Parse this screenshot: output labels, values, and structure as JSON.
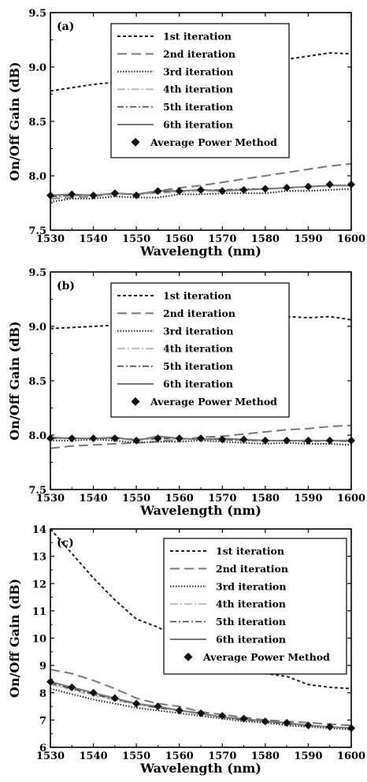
{
  "chart_data": [
    {
      "type": "line",
      "panel_label": "(a)",
      "xlabel": "Wavelength (nm)",
      "ylabel": "On/Off Gain (dB)",
      "xlim": [
        1530,
        1600
      ],
      "ylim": [
        7.5,
        9.5
      ],
      "xticks": [
        "1530",
        "1540",
        "1550",
        "1560",
        "1570",
        "1580",
        "1590",
        "1600"
      ],
      "yticks": [
        "7.5",
        "8.0",
        "8.5",
        "9.0",
        "9.5"
      ],
      "x": [
        1530,
        1535,
        1540,
        1545,
        1550,
        1555,
        1560,
        1565,
        1570,
        1575,
        1580,
        1585,
        1590,
        1595,
        1600
      ],
      "series": [
        {
          "name": "1st iteration",
          "style": "short-dash",
          "color": "#222222",
          "values": [
            8.78,
            8.81,
            8.84,
            8.86,
            8.89,
            8.91,
            8.94,
            8.97,
            8.99,
            9.01,
            9.04,
            9.07,
            9.1,
            9.13,
            9.12
          ]
        },
        {
          "name": "2nd iteration",
          "style": "long-dash",
          "color": "#777777",
          "values": [
            7.79,
            7.8,
            7.81,
            7.83,
            7.83,
            7.86,
            7.89,
            7.91,
            7.94,
            7.97,
            8.0,
            8.03,
            8.06,
            8.09,
            8.11
          ]
        },
        {
          "name": "3rd iteration",
          "style": "dotted",
          "color": "#222222",
          "values": [
            7.76,
            7.79,
            7.79,
            7.81,
            7.8,
            7.8,
            7.83,
            7.83,
            7.84,
            7.84,
            7.84,
            7.86,
            7.86,
            7.87,
            7.88
          ]
        },
        {
          "name": "4th iteration",
          "style": "dash-dot-light",
          "color": "#bbbbbb",
          "values": [
            7.8,
            7.81,
            7.82,
            7.83,
            7.83,
            7.84,
            7.85,
            7.86,
            7.86,
            7.87,
            7.88,
            7.89,
            7.9,
            7.91,
            7.92
          ]
        },
        {
          "name": "5th iteration",
          "style": "dash-dot",
          "color": "#444444",
          "values": [
            7.81,
            7.82,
            7.82,
            7.84,
            7.83,
            7.85,
            7.86,
            7.87,
            7.87,
            7.88,
            7.88,
            7.89,
            7.9,
            7.91,
            7.91
          ]
        },
        {
          "name": "6th iteration",
          "style": "solid",
          "color": "#777777",
          "values": [
            7.82,
            7.83,
            7.82,
            7.84,
            7.83,
            7.86,
            7.86,
            7.87,
            7.86,
            7.87,
            7.88,
            7.89,
            7.9,
            7.91,
            7.91
          ]
        }
      ],
      "markers": {
        "name": "Average Power Method",
        "symbol": "diamond",
        "x": [
          1530,
          1535,
          1540,
          1545,
          1550,
          1555,
          1560,
          1565,
          1570,
          1575,
          1580,
          1585,
          1590,
          1595,
          1600
        ],
        "values": [
          7.82,
          7.83,
          7.82,
          7.84,
          7.82,
          7.86,
          7.86,
          7.87,
          7.86,
          7.87,
          7.88,
          7.89,
          7.9,
          7.92,
          7.92
        ]
      },
      "legend": {
        "placement": "top-right"
      },
      "grid": false
    },
    {
      "type": "line",
      "panel_label": "(b)",
      "xlabel": "Wavelength (nm)",
      "ylabel": "On/Off Gain (dB)",
      "xlim": [
        1530,
        1600
      ],
      "ylim": [
        7.5,
        9.5
      ],
      "xticks": [
        "1530",
        "1540",
        "1550",
        "1560",
        "1570",
        "1580",
        "1590",
        "1600"
      ],
      "yticks": [
        "7.5",
        "8.0",
        "8.5",
        "9.0",
        "9.5"
      ],
      "x": [
        1530,
        1535,
        1540,
        1545,
        1550,
        1555,
        1560,
        1565,
        1570,
        1575,
        1580,
        1585,
        1590,
        1595,
        1600
      ],
      "series": [
        {
          "name": "1st iteration",
          "style": "short-dash",
          "color": "#222222",
          "values": [
            8.98,
            8.99,
            9.0,
            9.01,
            9.02,
            9.03,
            9.04,
            9.05,
            9.06,
            9.07,
            9.08,
            9.09,
            9.08,
            9.09,
            9.06
          ]
        },
        {
          "name": "2nd iteration",
          "style": "long-dash",
          "color": "#777777",
          "values": [
            7.88,
            7.9,
            7.91,
            7.92,
            7.93,
            7.94,
            7.96,
            7.98,
            7.99,
            8.01,
            8.03,
            8.05,
            8.06,
            8.08,
            8.09
          ]
        },
        {
          "name": "3rd iteration",
          "style": "dotted",
          "color": "#222222",
          "values": [
            7.95,
            7.95,
            7.96,
            7.95,
            7.93,
            7.94,
            7.94,
            7.95,
            7.94,
            7.93,
            7.92,
            7.93,
            7.92,
            7.92,
            7.91
          ]
        },
        {
          "name": "4th iteration",
          "style": "dash-dot-light",
          "color": "#bbbbbb",
          "values": [
            7.97,
            7.97,
            7.97,
            7.97,
            7.96,
            7.96,
            7.96,
            7.96,
            7.96,
            7.95,
            7.95,
            7.95,
            7.95,
            7.95,
            7.95
          ]
        },
        {
          "name": "5th iteration",
          "style": "dash-dot",
          "color": "#444444",
          "values": [
            7.97,
            7.97,
            7.97,
            7.97,
            7.96,
            7.97,
            7.97,
            7.96,
            7.96,
            7.95,
            7.95,
            7.95,
            7.94,
            7.95,
            7.94
          ]
        },
        {
          "name": "6th iteration",
          "style": "solid",
          "color": "#777777",
          "values": [
            7.98,
            7.97,
            7.97,
            7.98,
            7.95,
            7.99,
            7.97,
            7.96,
            7.97,
            7.96,
            7.95,
            7.95,
            7.95,
            7.95,
            7.95
          ]
        }
      ],
      "markers": {
        "name": "Average Power Method",
        "symbol": "diamond",
        "x": [
          1530,
          1535,
          1540,
          1545,
          1550,
          1555,
          1560,
          1565,
          1570,
          1575,
          1580,
          1585,
          1590,
          1595,
          1600
        ],
        "values": [
          7.97,
          7.97,
          7.97,
          7.97,
          7.95,
          7.97,
          7.97,
          7.97,
          7.96,
          7.96,
          7.95,
          7.95,
          7.95,
          7.95,
          7.95
        ]
      },
      "legend": {
        "placement": "top-right"
      },
      "grid": false
    },
    {
      "type": "line",
      "panel_label": "(c)",
      "xlabel": "Wavelength (nm)",
      "ylabel": "On/Off Gain (dB)",
      "xlim": [
        1530,
        1600
      ],
      "ylim": [
        6,
        14
      ],
      "xticks": [
        "1530",
        "1540",
        "1550",
        "1560",
        "1570",
        "1580",
        "1590",
        "1600"
      ],
      "yticks": [
        "6",
        "7",
        "8",
        "9",
        "10",
        "11",
        "12",
        "13",
        "14"
      ],
      "x": [
        1530,
        1535,
        1540,
        1545,
        1550,
        1555,
        1560,
        1565,
        1570,
        1575,
        1580,
        1585,
        1590,
        1595,
        1600
      ],
      "series": [
        {
          "name": "1st iteration",
          "style": "short-dash",
          "color": "#222222",
          "values": [
            14.0,
            13.1,
            12.2,
            11.4,
            10.7,
            10.4,
            10.0,
            9.6,
            9.2,
            8.9,
            8.7,
            8.6,
            8.3,
            8.2,
            8.15
          ]
        },
        {
          "name": "2nd iteration",
          "style": "long-dash",
          "color": "#777777",
          "values": [
            8.85,
            8.7,
            8.45,
            8.15,
            7.8,
            7.6,
            7.5,
            7.3,
            7.2,
            7.1,
            7.0,
            6.95,
            6.9,
            6.85,
            6.8
          ]
        },
        {
          "name": "3rd iteration",
          "style": "dotted",
          "color": "#222222",
          "values": [
            8.15,
            7.95,
            7.75,
            7.6,
            7.45,
            7.35,
            7.25,
            7.15,
            7.05,
            6.95,
            6.9,
            6.8,
            6.75,
            6.7,
            6.65
          ]
        },
        {
          "name": "4th iteration",
          "style": "dash-dot-light",
          "color": "#bbbbbb",
          "values": [
            8.3,
            8.1,
            7.9,
            7.75,
            7.55,
            7.45,
            7.35,
            7.2,
            7.1,
            7.0,
            6.95,
            6.85,
            6.8,
            6.75,
            6.7
          ]
        },
        {
          "name": "5th iteration",
          "style": "dash-dot",
          "color": "#444444",
          "values": [
            8.35,
            8.15,
            7.95,
            7.75,
            7.6,
            7.45,
            7.35,
            7.25,
            7.1,
            7.0,
            6.95,
            6.85,
            6.8,
            6.75,
            6.7
          ]
        },
        {
          "name": "6th iteration",
          "style": "solid",
          "color": "#777777",
          "values": [
            8.4,
            8.2,
            8.0,
            7.8,
            7.6,
            7.5,
            7.35,
            7.25,
            7.1,
            7.05,
            6.95,
            6.9,
            6.8,
            6.75,
            6.7
          ]
        }
      ],
      "markers": {
        "name": "Average Power Method",
        "symbol": "diamond",
        "x": [
          1530,
          1535,
          1540,
          1545,
          1550,
          1555,
          1560,
          1565,
          1570,
          1575,
          1580,
          1585,
          1590,
          1595,
          1600
        ],
        "values": [
          8.4,
          8.2,
          8.0,
          7.8,
          7.6,
          7.5,
          7.35,
          7.25,
          7.15,
          7.05,
          6.95,
          6.9,
          6.8,
          6.75,
          6.7
        ]
      },
      "legend": {
        "placement": "top-right"
      },
      "grid": false
    }
  ]
}
